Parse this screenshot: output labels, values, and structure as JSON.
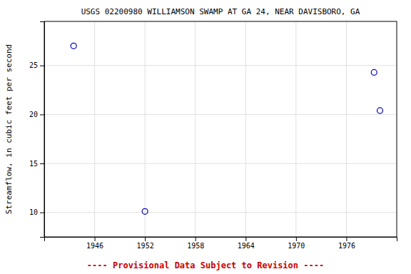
{
  "chart_data": {
    "type": "scatter",
    "title": "USGS 02200980 WILLIAMSON SWAMP AT GA 24, NEAR DAVISBORO, GA",
    "ylabel": "Streamflow, in cubic feet per second",
    "x": [
      1943.5,
      1952.0,
      1979.3,
      1980.0
    ],
    "values": [
      27.0,
      10.1,
      24.3,
      20.4
    ],
    "xlim": [
      1940.0,
      1982.0
    ],
    "ylim": [
      7.5,
      29.5
    ],
    "xticks": [
      1946,
      1952,
      1958,
      1964,
      1970,
      1976
    ],
    "yticks": [
      10,
      15,
      20,
      25
    ],
    "color": "#0000bb",
    "marker": "circle",
    "grid": true,
    "annotations": [
      {
        "text": "---- Provisional Data Subject to Revision ----",
        "color": "#cc0000"
      }
    ]
  }
}
